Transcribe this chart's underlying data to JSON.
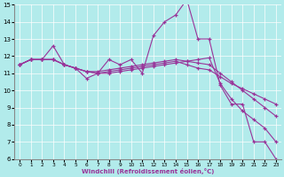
{
  "xlabel": "Windchill (Refroidissement éolien,°C)",
  "background_color": "#b2ebeb",
  "line_color": "#993399",
  "grid_color": "#ffffff",
  "xlim": [
    -0.5,
    23.5
  ],
  "ylim": [
    6,
    15
  ],
  "xticks": [
    0,
    1,
    2,
    3,
    4,
    5,
    6,
    7,
    8,
    9,
    10,
    11,
    12,
    13,
    14,
    15,
    16,
    17,
    18,
    19,
    20,
    21,
    22,
    23
  ],
  "yticks": [
    6,
    7,
    8,
    9,
    10,
    11,
    12,
    13,
    14,
    15
  ],
  "series": [
    [
      11.5,
      11.8,
      11.8,
      12.6,
      11.5,
      11.3,
      10.7,
      11.0,
      11.8,
      11.5,
      11.8,
      11.0,
      13.2,
      14.0,
      14.4,
      15.3,
      13.0,
      13.0,
      10.3,
      9.2,
      9.2,
      7.0,
      7.0,
      6.0
    ],
    [
      11.5,
      11.8,
      11.8,
      11.8,
      11.5,
      11.3,
      11.1,
      11.0,
      11.1,
      11.2,
      11.3,
      11.4,
      11.5,
      11.6,
      11.7,
      11.5,
      11.3,
      11.2,
      10.8,
      10.4,
      10.1,
      9.8,
      9.5,
      9.2
    ],
    [
      11.5,
      11.8,
      11.8,
      11.8,
      11.5,
      11.3,
      11.1,
      11.1,
      11.2,
      11.3,
      11.4,
      11.5,
      11.6,
      11.7,
      11.8,
      11.7,
      11.6,
      11.5,
      11.0,
      10.5,
      10.0,
      9.5,
      9.0,
      8.5
    ],
    [
      11.5,
      11.8,
      11.8,
      11.8,
      11.5,
      11.3,
      11.1,
      11.0,
      11.0,
      11.1,
      11.2,
      11.3,
      11.4,
      11.5,
      11.6,
      11.7,
      11.8,
      11.9,
      10.4,
      9.5,
      8.8,
      8.3,
      7.8,
      7.0
    ]
  ]
}
